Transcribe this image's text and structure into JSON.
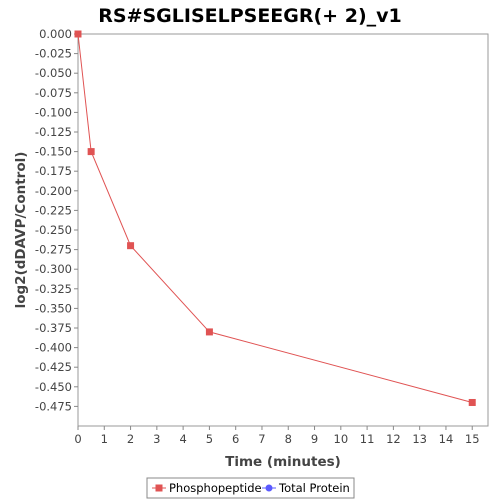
{
  "chart_data": {
    "type": "line",
    "title": "RS#SGLISELPSEEGR(+ 2)_v1",
    "xlabel": "Time (minutes)",
    "ylabel": "log2(dDAVP/Control)",
    "xlim": [
      0,
      15.6
    ],
    "ylim": [
      -0.5,
      0.0
    ],
    "x_ticks": [
      0,
      1,
      2,
      3,
      4,
      5,
      6,
      7,
      8,
      9,
      10,
      11,
      12,
      13,
      14,
      15
    ],
    "y_ticks": [
      0.0,
      -0.025,
      -0.05,
      -0.075,
      -0.1,
      -0.125,
      -0.15,
      -0.175,
      -0.2,
      -0.225,
      -0.25,
      -0.275,
      -0.3,
      -0.325,
      -0.35,
      -0.375,
      -0.4,
      -0.425,
      -0.45,
      -0.475
    ],
    "grid": false,
    "legend_position": "bottom",
    "series": [
      {
        "name": "Phosphopeptide",
        "color": "#e05353",
        "marker": "square",
        "x": [
          0,
          0.5,
          2,
          5,
          15
        ],
        "y": [
          0.0,
          -0.15,
          -0.27,
          -0.38,
          -0.47
        ]
      },
      {
        "name": "Total Protein",
        "color": "#5a5aff",
        "marker": "circle",
        "x": [],
        "y": []
      }
    ]
  }
}
